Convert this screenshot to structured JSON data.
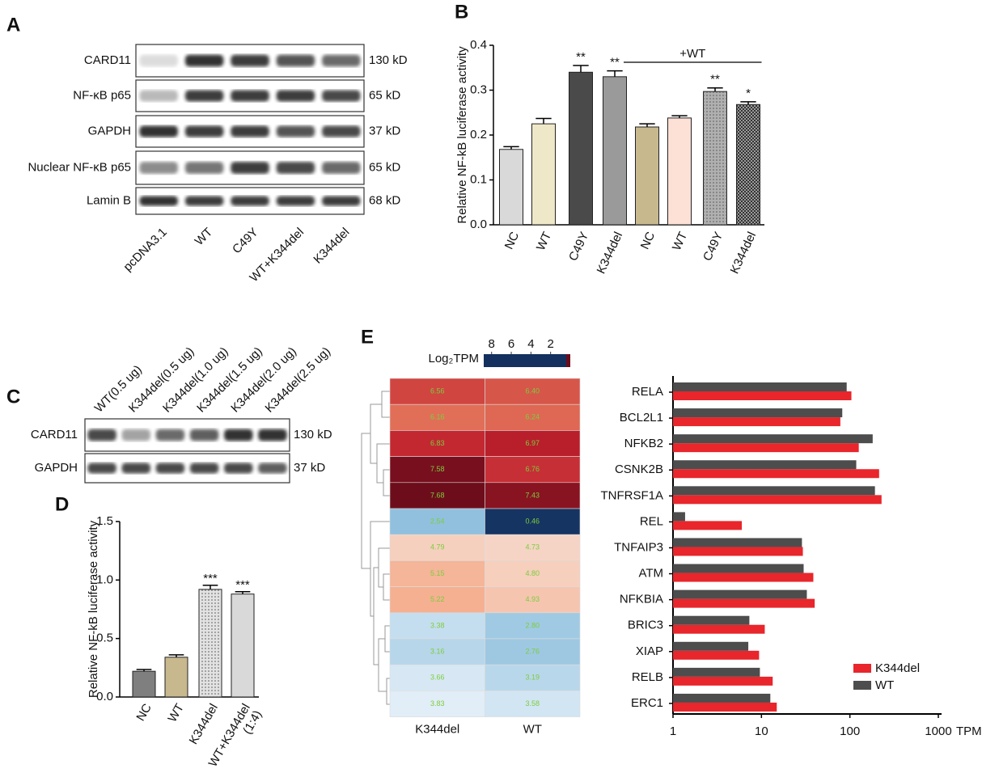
{
  "panel_labels": [
    "A",
    "B",
    "C",
    "D",
    "E"
  ],
  "blot_a": {
    "rows": [
      {
        "label": "CARD11",
        "size": "130 kD"
      },
      {
        "label": "NF-κB p65",
        "size": "65 kD"
      },
      {
        "label": "GAPDH",
        "size": "37 kD"
      },
      {
        "label": "Nuclear NF-κB p65",
        "size": "65 kD"
      },
      {
        "label": "Lamin B",
        "size": "68 kD"
      }
    ],
    "lanes": [
      "pcDNA3.1",
      "WT",
      "C49Y",
      "WT+K344del",
      "K344del"
    ]
  },
  "blot_c": {
    "rows": [
      {
        "label": "CARD11",
        "size": "130 kD"
      },
      {
        "label": "GAPDH",
        "size": "37 kD"
      }
    ],
    "lanes": [
      "WT(0.5 ug)",
      "K344del(0.5 ug)",
      "K344del(1.0 ug)",
      "K344del(1.5 ug)",
      "K344del(2.0 ug)",
      "K344del(2.5 ug)"
    ]
  },
  "chart_data": [
    {
      "type": "bar",
      "y_label": "Relative NF-kB luciferase activity",
      "categories": [
        "NC",
        "WT",
        "C49Y",
        "K344del",
        "NC",
        "WT",
        "C49Y",
        "K344del"
      ],
      "values": [
        0.168,
        0.225,
        0.34,
        0.33,
        0.218,
        0.238,
        0.297,
        0.268
      ],
      "errors": [
        0.006,
        0.012,
        0.015,
        0.013,
        0.007,
        0.005,
        0.008,
        0.006
      ],
      "colors": [
        "#d9d9d9",
        "#efe8c8",
        "#4a4a4a",
        "#9a9a9a",
        "#c8b88e",
        "#fde0d6",
        "#b0b0b0",
        "#9a9a9a"
      ],
      "patterns": [
        null,
        null,
        null,
        null,
        null,
        null,
        "dots",
        "checker"
      ],
      "annotations": [
        {
          "index": 2,
          "text": "**"
        },
        {
          "index": 3,
          "text": "**"
        },
        {
          "index": 6,
          "text": "**"
        },
        {
          "index": 7,
          "text": "*"
        }
      ],
      "groups": [
        {
          "label": "+WT",
          "start": 4,
          "end": 7
        }
      ],
      "ylim": [
        0,
        0.4
      ],
      "yticks": [
        {
          "value": 0,
          "label": "0.0"
        },
        0.1,
        0.2,
        0.3,
        0.4
      ]
    },
    {
      "type": "bar",
      "y_label": "Relative NF-kB luciferase activity",
      "categories": [
        "NC",
        "WT",
        "K344del",
        "WT+K344del\n(1:4)"
      ],
      "values": [
        0.22,
        0.34,
        0.92,
        0.88
      ],
      "errors": [
        0.015,
        0.02,
        0.035,
        0.02
      ],
      "colors": [
        "#7f7f7f",
        "#c8b88e",
        "#e2e2e2",
        "#d9d9d9"
      ],
      "patterns": [
        null,
        null,
        "dots",
        null
      ],
      "annotations": [
        {
          "index": 2,
          "text": "***"
        },
        {
          "index": 3,
          "text": "***"
        }
      ],
      "ylim": [
        0,
        1.5
      ],
      "yticks": [
        {
          "value": 0,
          "label": "0.0"
        },
        0.5,
        {
          "value": 1,
          "label": "1.0"
        },
        1.5
      ]
    },
    {
      "type": "heatmap",
      "columns": [
        "K344del",
        "WT"
      ],
      "values": [
        [
          6.56,
          6.4
        ],
        [
          6.16,
          6.24
        ],
        [
          6.83,
          6.97
        ],
        [
          7.58,
          6.76
        ],
        [
          7.68,
          7.43
        ],
        [
          2.54,
          0.46
        ],
        [
          4.79,
          4.73
        ],
        [
          5.15,
          4.8
        ],
        [
          5.22,
          4.93
        ],
        [
          3.38,
          2.8
        ],
        [
          3.16,
          2.76
        ],
        [
          3.66,
          3.19
        ],
        [
          3.83,
          3.58
        ]
      ],
      "value_labels": [
        [
          "6.56",
          "6.40"
        ],
        [
          "6.16",
          "6.24"
        ],
        [
          "6.83",
          "6.97"
        ],
        [
          "7.58",
          "6.76"
        ],
        [
          "7.68",
          "7.43"
        ],
        [
          "2.54",
          "0.46"
        ],
        [
          "4.79",
          "4.73"
        ],
        [
          "5.15",
          "4.80"
        ],
        [
          "5.22",
          "4.93"
        ],
        [
          "3.38",
          "2.80"
        ],
        [
          "3.16",
          "2.76"
        ],
        [
          "3.66",
          "3.19"
        ],
        [
          "3.83",
          "3.58"
        ]
      ],
      "colorbar_title": "Log₂TPM",
      "colorbar_lim": [
        8.8,
        0
      ],
      "colorbar_ticks": [
        8,
        6,
        4,
        2
      ],
      "colorscale": [
        {
          "value": 0.4,
          "color": "#13305e"
        },
        {
          "value": 2.5,
          "color": "#8dbfdd"
        },
        {
          "value": 3.8,
          "color": "#e0edf7"
        },
        {
          "value": 4.3,
          "color": "#f7f4f2"
        },
        {
          "value": 5.2,
          "color": "#f5b193"
        },
        {
          "value": 6.2,
          "color": "#e06c55"
        },
        {
          "value": 6.9,
          "color": "#c0202d"
        },
        {
          "value": 7.7,
          "color": "#6b0c1b"
        }
      ]
    },
    {
      "type": "barh",
      "x_label": "TPM",
      "log_x": true,
      "legend": "lower right",
      "categories": [
        "RELA",
        "BCL2L1",
        "NFKB2",
        "CSNK2B",
        "TNFRSF1A",
        "REL",
        "TNFAIP3",
        "ATM",
        "NFKBIA",
        "BRIC3",
        "XIAP",
        "RELB",
        "ERC1"
      ],
      "series": [
        {
          "name": "K344del",
          "color": "#e8262b",
          "values": [
            104,
            78,
            126,
            214,
            228,
            6.0,
            29.4,
            38.6,
            40,
            10.9,
            9.4,
            13.4,
            14.9
          ]
        },
        {
          "name": "WT",
          "color": "#4d4d4d",
          "values": [
            92,
            82,
            181,
            118,
            192,
            1.37,
            28.7,
            30,
            32.6,
            7.3,
            7.1,
            9.6,
            12.6
          ]
        }
      ],
      "xlim": [
        1,
        1000
      ],
      "xticks": [
        1,
        10,
        100,
        1000
      ]
    }
  ]
}
